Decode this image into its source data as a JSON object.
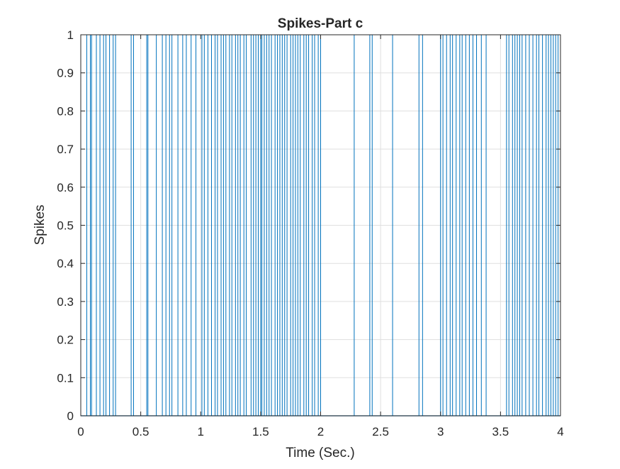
{
  "chart_data": {
    "type": "spike_train",
    "title": "Spikes-Part c",
    "xlabel": "Time (Sec.)",
    "ylabel": "Spikes",
    "xlim": [
      0,
      4
    ],
    "ylim": [
      0,
      1
    ],
    "xticks": [
      0,
      0.5,
      1,
      1.5,
      2,
      2.5,
      3,
      3.5,
      4
    ],
    "xtick_labels": [
      "0",
      "0.5",
      "1",
      "1.5",
      "2",
      "2.5",
      "3",
      "3.5",
      "4"
    ],
    "yticks": [
      0,
      0.1,
      0.2,
      0.3,
      0.4,
      0.5,
      0.6,
      0.7,
      0.8,
      0.9,
      1
    ],
    "ytick_labels": [
      "0",
      "0.1",
      "0.2",
      "0.3",
      "0.4",
      "0.5",
      "0.6",
      "0.7",
      "0.8",
      "0.9",
      "1"
    ],
    "grid": true,
    "series_color": "#0072BD",
    "spike_times": [
      0.05,
      0.08,
      0.09,
      0.13,
      0.16,
      0.19,
      0.21,
      0.24,
      0.27,
      0.29,
      0.42,
      0.44,
      0.55,
      0.56,
      0.63,
      0.68,
      0.71,
      0.74,
      0.76,
      0.81,
      0.85,
      0.88,
      0.92,
      0.96,
      1.01,
      1.03,
      1.06,
      1.09,
      1.12,
      1.14,
      1.17,
      1.19,
      1.21,
      1.24,
      1.26,
      1.29,
      1.31,
      1.33,
      1.36,
      1.38,
      1.42,
      1.44,
      1.46,
      1.48,
      1.5,
      1.51,
      1.53,
      1.55,
      1.57,
      1.59,
      1.62,
      1.64,
      1.66,
      1.68,
      1.7,
      1.72,
      1.75,
      1.77,
      1.79,
      1.81,
      1.83,
      1.86,
      1.88,
      1.9,
      1.93,
      1.95,
      1.98,
      2.0,
      2.28,
      2.41,
      2.43,
      2.6,
      2.82,
      2.85,
      3.0,
      3.02,
      3.05,
      3.08,
      3.1,
      3.13,
      3.16,
      3.18,
      3.21,
      3.24,
      3.27,
      3.3,
      3.34,
      3.38,
      3.55,
      3.57,
      3.6,
      3.62,
      3.64,
      3.66,
      3.68,
      3.71,
      3.74,
      3.77,
      3.8,
      3.82,
      3.85,
      3.88,
      3.9,
      3.92,
      3.94,
      3.96,
      3.98
    ]
  }
}
